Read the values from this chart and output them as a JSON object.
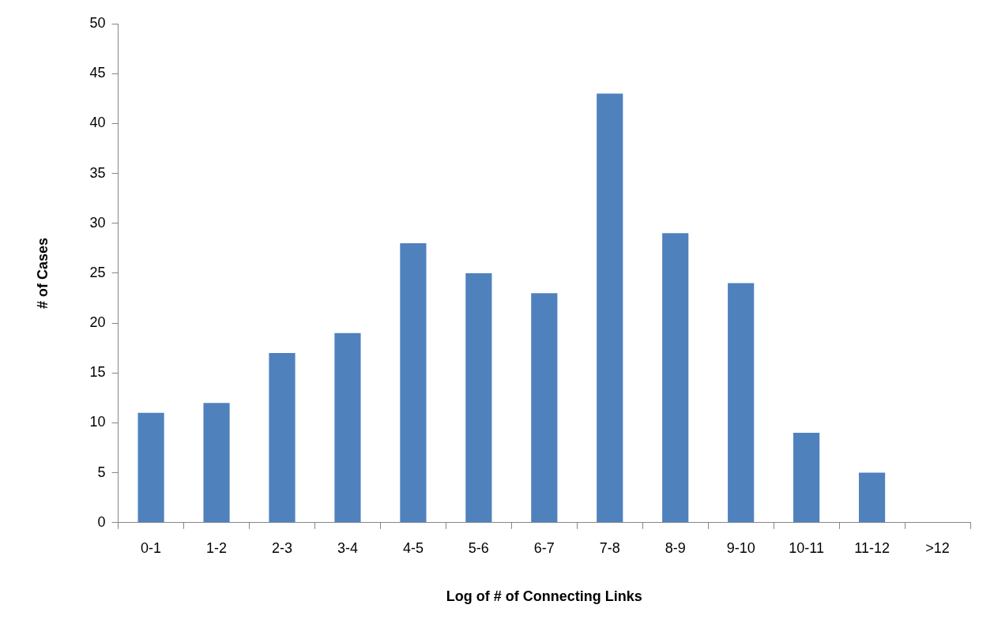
{
  "chart_data": {
    "type": "bar",
    "xlabel": "Log of # of Connecting Links",
    "ylabel": "# of Cases",
    "categories": [
      "0-1",
      "1-2",
      "2-3",
      "3-4",
      "4-5",
      "5-6",
      "6-7",
      "7-8",
      "8-9",
      "9-10",
      "10-11",
      "11-12",
      ">12"
    ],
    "values": [
      11,
      12,
      17,
      19,
      28,
      25,
      23,
      43,
      29,
      24,
      9,
      5,
      0
    ],
    "color": "#4f81bd",
    "ylim": [
      0,
      50
    ],
    "yticks": [
      0,
      5,
      10,
      15,
      20,
      25,
      30,
      35,
      40,
      45,
      50
    ],
    "grid": false,
    "legend": false
  }
}
